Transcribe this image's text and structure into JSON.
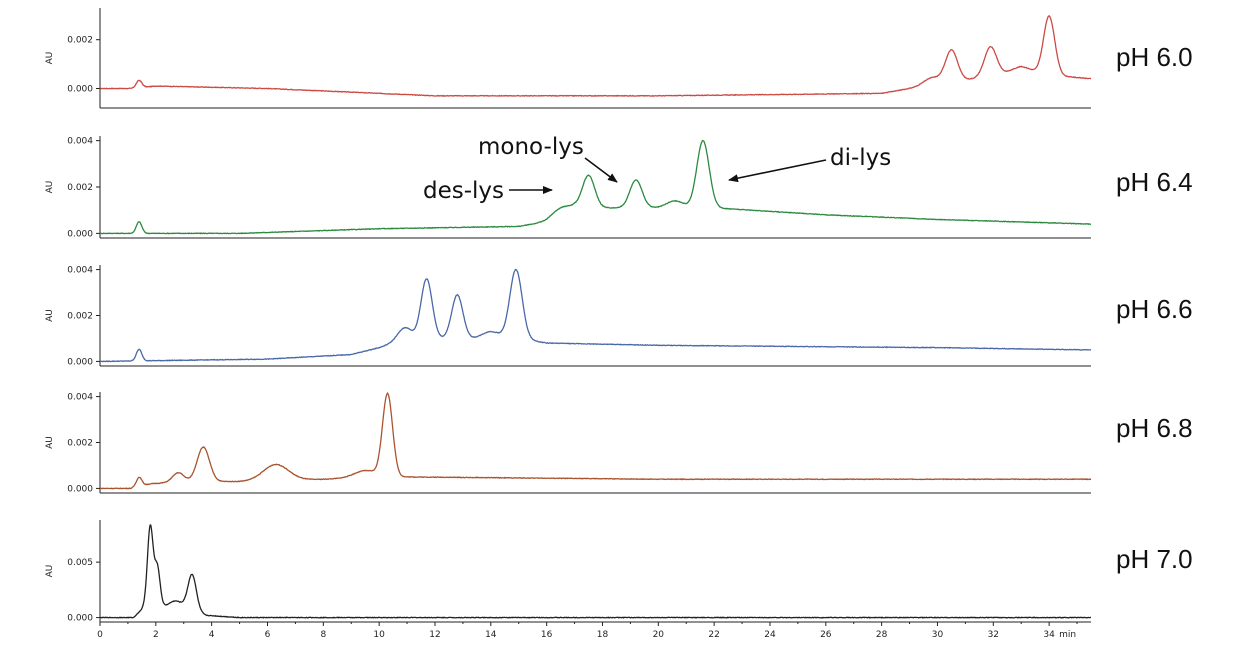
{
  "chart_data": {
    "type": "line",
    "x_unit": "min",
    "xlim": [
      0,
      35.5
    ],
    "x_ticks": [
      0,
      2,
      4,
      6,
      8,
      10,
      12,
      14,
      16,
      18,
      20,
      22,
      24,
      26,
      28,
      30,
      32,
      34
    ],
    "grid": false,
    "panels": [
      {
        "label": "pH 6.0",
        "ylabel": "AU",
        "color": "#cc4a44",
        "ylim": [
          -0.0008,
          0.0033
        ],
        "yticks": [
          0.0,
          0.002
        ],
        "ytick_labels": [
          "0.000",
          "0.002"
        ],
        "baseline": [
          [
            0,
            0.0
          ],
          [
            1.1,
            0.0
          ],
          [
            2,
            0.0001
          ],
          [
            6,
            0.0
          ],
          [
            12,
            -0.0003
          ],
          [
            20,
            -0.0003
          ],
          [
            28,
            -0.0002
          ],
          [
            29,
            0.0
          ],
          [
            33,
            0.0007
          ],
          [
            34.5,
            0.0005
          ],
          [
            35.5,
            0.0004
          ]
        ],
        "peaks": [
          {
            "x": 1.4,
            "h": 0.0003,
            "w": 0.1
          },
          {
            "x": 29.8,
            "h": 0.0003,
            "w": 0.3
          },
          {
            "x": 30.5,
            "h": 0.0013,
            "w": 0.22
          },
          {
            "x": 31.9,
            "h": 0.0012,
            "w": 0.22
          },
          {
            "x": 33.0,
            "h": 0.0002,
            "w": 0.35
          },
          {
            "x": 34.0,
            "h": 0.0024,
            "w": 0.2
          }
        ]
      },
      {
        "label": "pH 6.4",
        "ylabel": "AU",
        "color": "#2b8a3e",
        "ylim": [
          -0.0002,
          0.0042
        ],
        "yticks": [
          0.0,
          0.002,
          0.004
        ],
        "ytick_labels": [
          "0.000",
          "0.002",
          "0.004"
        ],
        "baseline": [
          [
            0,
            0.0
          ],
          [
            5,
            0.0
          ],
          [
            10,
            0.0002
          ],
          [
            15,
            0.0003
          ],
          [
            16,
            0.0005
          ],
          [
            17,
            0.0011
          ],
          [
            20,
            0.0011
          ],
          [
            22,
            0.0011
          ],
          [
            26,
            0.0008
          ],
          [
            30,
            0.0006
          ],
          [
            35.5,
            0.0004
          ]
        ],
        "peaks": [
          {
            "x": 1.4,
            "h": 0.0005,
            "w": 0.1
          },
          {
            "x": 16.5,
            "h": 0.0003,
            "w": 0.35
          },
          {
            "x": 17.5,
            "h": 0.0014,
            "w": 0.22
          },
          {
            "x": 19.2,
            "h": 0.0012,
            "w": 0.22
          },
          {
            "x": 20.6,
            "h": 0.0003,
            "w": 0.3
          },
          {
            "x": 21.6,
            "h": 0.0029,
            "w": 0.22
          }
        ],
        "annotations": [
          {
            "text": "des-lys",
            "x": 17.2,
            "y": 0.0018
          },
          {
            "text": "mono-lys",
            "x": 18.8,
            "y": 0.0023
          },
          {
            "text": "di-lys",
            "x": 22.0,
            "y": 0.0023
          }
        ]
      },
      {
        "label": "pH 6.6",
        "ylabel": "AU",
        "color": "#4a68a8",
        "ylim": [
          -0.0002,
          0.0042
        ],
        "yticks": [
          0.0,
          0.002,
          0.004
        ],
        "ytick_labels": [
          "0.000",
          "0.002",
          "0.004"
        ],
        "baseline": [
          [
            0,
            0.0
          ],
          [
            6,
            0.0001
          ],
          [
            9,
            0.0003
          ],
          [
            10,
            0.0006
          ],
          [
            11,
            0.001
          ],
          [
            15,
            0.001
          ],
          [
            16,
            0.0008
          ],
          [
            20,
            0.0007
          ],
          [
            30,
            0.0006
          ],
          [
            35.5,
            0.0005
          ]
        ],
        "peaks": [
          {
            "x": 1.4,
            "h": 0.0005,
            "w": 0.1
          },
          {
            "x": 10.9,
            "h": 0.0005,
            "w": 0.25
          },
          {
            "x": 11.7,
            "h": 0.0026,
            "w": 0.2
          },
          {
            "x": 12.8,
            "h": 0.0019,
            "w": 0.2
          },
          {
            "x": 14.0,
            "h": 0.0003,
            "w": 0.3
          },
          {
            "x": 14.9,
            "h": 0.003,
            "w": 0.22
          }
        ]
      },
      {
        "label": "pH 6.8",
        "ylabel": "AU",
        "color": "#a9532f",
        "ylim": [
          -0.0002,
          0.0042
        ],
        "yticks": [
          0.0,
          0.002,
          0.004
        ],
        "ytick_labels": [
          "0.000",
          "0.002",
          "0.004"
        ],
        "baseline": [
          [
            0,
            0.0
          ],
          [
            1.1,
            0.0
          ],
          [
            1.8,
            0.0002
          ],
          [
            3,
            0.0003
          ],
          [
            5,
            0.0003
          ],
          [
            8,
            0.0004
          ],
          [
            10,
            0.0005
          ],
          [
            11,
            0.0005
          ],
          [
            20,
            0.0004
          ],
          [
            35.5,
            0.0004
          ]
        ],
        "peaks": [
          {
            "x": 1.4,
            "h": 0.0004,
            "w": 0.1
          },
          {
            "x": 2.8,
            "h": 0.0004,
            "w": 0.2
          },
          {
            "x": 3.7,
            "h": 0.0015,
            "w": 0.22
          },
          {
            "x": 6.3,
            "h": 0.0007,
            "w": 0.45
          },
          {
            "x": 9.5,
            "h": 0.0003,
            "w": 0.4
          },
          {
            "x": 10.3,
            "h": 0.0036,
            "w": 0.18
          }
        ]
      },
      {
        "label": "pH 7.0",
        "ylabel": "AU",
        "color": "#222222",
        "ylim": [
          -0.0004,
          0.0088
        ],
        "yticks": [
          0.0,
          0.005
        ],
        "ytick_labels": [
          "0.000",
          "0.005"
        ],
        "baseline": [
          [
            0,
            0.0
          ],
          [
            1.2,
            0.0
          ],
          [
            1.6,
            0.001
          ],
          [
            3.0,
            0.001
          ],
          [
            3.8,
            0.0002
          ],
          [
            5,
            0.0
          ],
          [
            35.5,
            0.0
          ]
        ],
        "peaks": [
          {
            "x": 1.8,
            "h": 0.0072,
            "w": 0.1
          },
          {
            "x": 2.05,
            "h": 0.0036,
            "w": 0.1
          },
          {
            "x": 2.7,
            "h": 0.0005,
            "w": 0.2
          },
          {
            "x": 3.3,
            "h": 0.0032,
            "w": 0.15
          }
        ]
      }
    ]
  }
}
